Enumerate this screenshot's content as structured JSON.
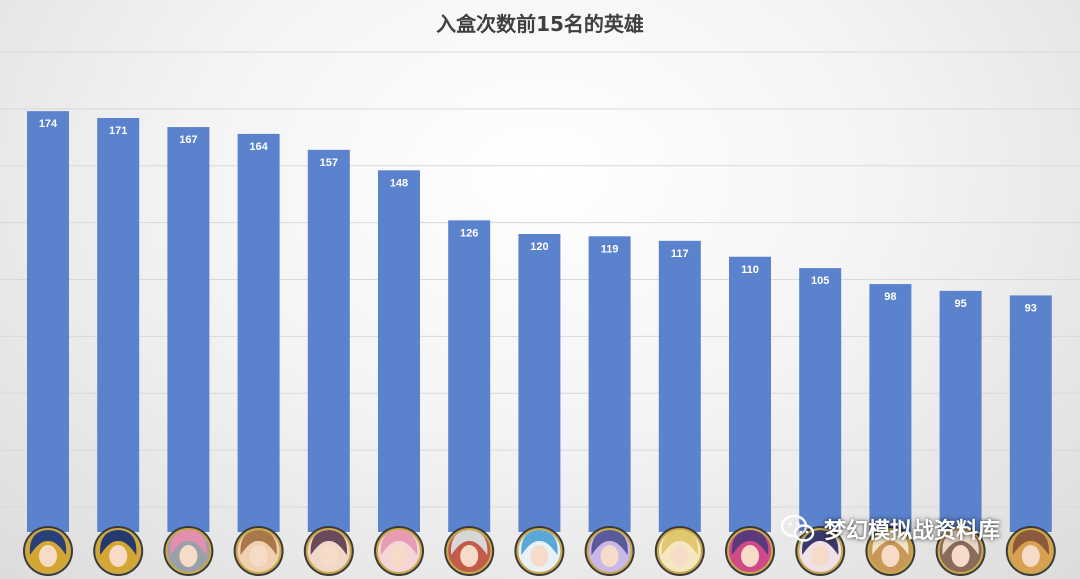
{
  "chart_data": {
    "type": "bar",
    "title": "入盒次数前15名的英雄",
    "categories": [
      "hero-1",
      "hero-2",
      "hero-3",
      "hero-4",
      "hero-5",
      "hero-6",
      "hero-7",
      "hero-8",
      "hero-9",
      "hero-10",
      "hero-11",
      "hero-12",
      "hero-13",
      "hero-14",
      "hero-15"
    ],
    "values": [
      174,
      171,
      167,
      164,
      157,
      148,
      126,
      120,
      119,
      117,
      110,
      105,
      98,
      95,
      93
    ],
    "ylim": [
      0,
      200
    ],
    "grid": true,
    "legend": "none",
    "colors": {
      "bar": "#5b82cc",
      "grid": "#d9d9d9",
      "label": "#ffffff"
    }
  },
  "watermark": {
    "text": "梦幻模拟战资料库",
    "icon": "wechat-icon"
  },
  "hero_portraits": [
    {
      "icon": "hero-portrait-icon",
      "colors": [
        "#2a3f7a",
        "#d4a733"
      ]
    },
    {
      "icon": "hero-portrait-icon",
      "colors": [
        "#243a6e",
        "#d4a733"
      ]
    },
    {
      "icon": "hero-portrait-icon",
      "colors": [
        "#e58fb0",
        "#9aa0a8"
      ]
    },
    {
      "icon": "hero-portrait-icon",
      "colors": [
        "#a8784a",
        "#f0d0b0"
      ]
    },
    {
      "icon": "hero-portrait-icon",
      "colors": [
        "#6a4a5a",
        "#f0d8c8"
      ]
    },
    {
      "icon": "hero-portrait-icon",
      "colors": [
        "#e79cb3",
        "#f5d5d5"
      ]
    },
    {
      "icon": "hero-portrait-icon",
      "colors": [
        "#d7d7d7",
        "#c25b4a"
      ]
    },
    {
      "icon": "hero-portrait-icon",
      "colors": [
        "#5aa8d8",
        "#e8f0f8"
      ]
    },
    {
      "icon": "hero-portrait-icon",
      "colors": [
        "#5a5a9a",
        "#c8b8e8"
      ]
    },
    {
      "icon": "hero-portrait-icon",
      "colors": [
        "#e0c870",
        "#f5e8c0"
      ]
    },
    {
      "icon": "hero-portrait-icon",
      "colors": [
        "#5a3a7a",
        "#d04a8a"
      ]
    },
    {
      "icon": "hero-portrait-icon",
      "colors": [
        "#3a3a6a",
        "#f0e0e8"
      ]
    },
    {
      "icon": "hero-portrait-icon",
      "colors": [
        "#f0e4c4",
        "#c89858"
      ]
    },
    {
      "icon": "hero-portrait-icon",
      "colors": [
        "#e8d8c8",
        "#8a6a5a"
      ]
    },
    {
      "icon": "hero-portrait-icon",
      "colors": [
        "#8a5a3a",
        "#d8a050"
      ]
    }
  ]
}
